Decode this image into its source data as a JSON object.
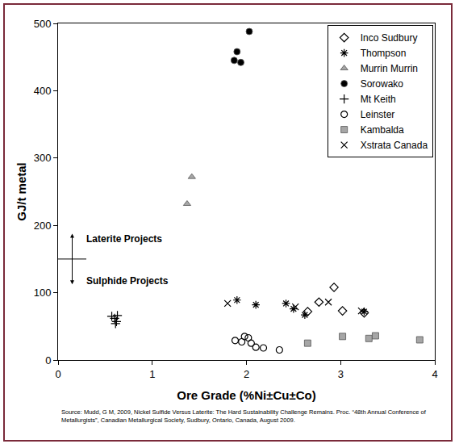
{
  "chart_data": {
    "type": "scatter",
    "x_label": "Ore Grade (%Ni±Cu±Co)",
    "y_label": "GJ/t metal",
    "xlim": [
      0,
      4
    ],
    "xticks": [
      0,
      1,
      2,
      3,
      4
    ],
    "ylim": [
      0,
      500
    ],
    "yticks": [
      0,
      100,
      200,
      300,
      400,
      500
    ],
    "grid": false,
    "legend": "upper right",
    "annotations": [
      "Laterite Projects",
      "Sulphide Projects"
    ],
    "source": "Source: Mudd, G M, 2009, Nickel Sulfide Versus Laterite: The Hard Sustainability Challenge Remains. Proc. “48th Annual Conference of Metallurgists”, Canadian Metallurgical Society, Sudbury, Ontario, Canada, August 2009.",
    "series": [
      {
        "name": "Inco Sudbury",
        "marker": "diamond-open",
        "color": "#000000",
        "x": [
          2.65,
          2.77,
          2.93,
          3.02,
          3.25
        ],
        "values": [
          72,
          86,
          108,
          73,
          70
        ]
      },
      {
        "name": "Thompson",
        "marker": "asterisk",
        "color": "#000000",
        "x": [
          1.9,
          2.1,
          2.42,
          2.5,
          2.62,
          3.25
        ],
        "values": [
          89,
          82,
          84,
          76,
          67,
          72
        ]
      },
      {
        "name": "Murrin Murrin",
        "marker": "triangle",
        "color": "#a6a6a6",
        "x": [
          1.37,
          1.42
        ],
        "values": [
          232,
          272
        ]
      },
      {
        "name": "Sorowako",
        "marker": "circle",
        "color": "#000000",
        "x": [
          1.87,
          1.9,
          1.94,
          2.03
        ],
        "values": [
          445,
          458,
          442,
          488
        ]
      },
      {
        "name": "Mt Keith",
        "marker": "plus",
        "color": "#000000",
        "x": [
          0.57,
          0.6,
          0.61,
          0.62,
          0.63
        ],
        "values": [
          65,
          62,
          54,
          57,
          66
        ]
      },
      {
        "name": "Leinster",
        "marker": "circle-open",
        "color": "#000000",
        "x": [
          1.88,
          1.95,
          1.98,
          2.02,
          2.05,
          2.1,
          2.18,
          2.35
        ],
        "values": [
          29,
          27,
          35,
          33,
          25,
          19,
          18,
          15
        ]
      },
      {
        "name": "Kambalda",
        "marker": "square",
        "color": "#a6a6a6",
        "x": [
          2.65,
          3.02,
          3.3,
          3.37,
          3.84
        ],
        "values": [
          25,
          35,
          32,
          36,
          30
        ]
      },
      {
        "name": "Xstrata Canada",
        "marker": "x",
        "color": "#000000",
        "x": [
          1.8,
          2.52,
          2.87,
          3.22
        ],
        "values": [
          84,
          79,
          86,
          73
        ]
      }
    ]
  }
}
